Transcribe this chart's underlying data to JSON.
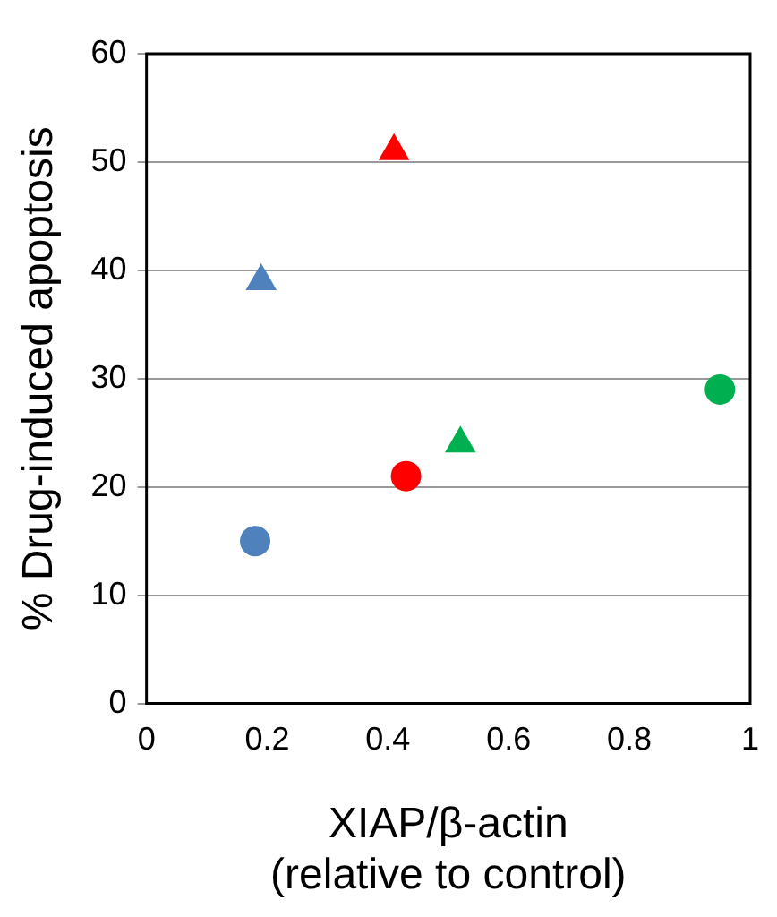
{
  "chart_data": {
    "type": "scatter",
    "xlabel": "XIAP/β-actin\n(relative to control)",
    "ylabel": "% Drug-induced apoptosis",
    "xlim": [
      0,
      1
    ],
    "xticks": [
      0,
      0.2,
      0.4,
      0.6,
      0.8,
      1
    ],
    "ylim": [
      0,
      60
    ],
    "yticks": [
      0,
      10,
      20,
      30,
      40,
      50,
      60
    ],
    "grid": "y",
    "legend": false,
    "series": [
      {
        "color": "#4f81bd",
        "marker": "circle",
        "x": [
          0.18
        ],
        "values": [
          15
        ]
      },
      {
        "color": "#4f81bd",
        "marker": "triangle",
        "x": [
          0.19
        ],
        "values": [
          39
        ]
      },
      {
        "color": "#ff0000",
        "marker": "triangle",
        "x": [
          0.41
        ],
        "values": [
          51
        ]
      },
      {
        "color": "#ff0000",
        "marker": "circle",
        "x": [
          0.43
        ],
        "values": [
          21
        ]
      },
      {
        "color": "#00b050",
        "marker": "triangle",
        "x": [
          0.52
        ],
        "values": [
          24
        ]
      },
      {
        "color": "#00b050",
        "marker": "circle",
        "x": [
          0.95
        ],
        "values": [
          29
        ]
      }
    ]
  }
}
